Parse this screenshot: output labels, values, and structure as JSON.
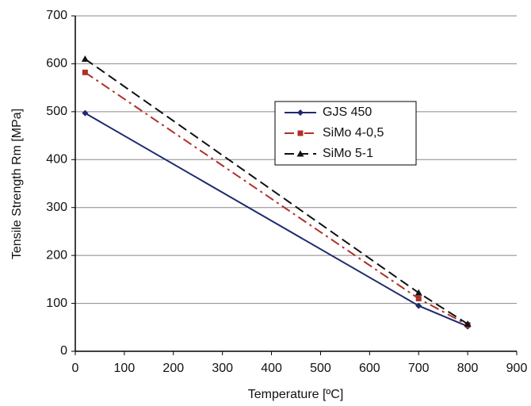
{
  "chart_data": {
    "type": "line",
    "x_label": "Temperature [ºC]",
    "y_label": "Tensile Strength  Rm [MPa]",
    "x": [
      20,
      700,
      800
    ],
    "series": [
      {
        "name": "GJS 450",
        "color": "#1f2a6e",
        "dash": "solid",
        "marker": "diamond",
        "values": [
          497,
          95,
          52
        ]
      },
      {
        "name": "SiMo 4-0,5",
        "color": "#b03028",
        "dash": "dashdot",
        "marker": "square",
        "values": [
          582,
          110,
          55
        ]
      },
      {
        "name": "SiMo 5-1",
        "color": "#111111",
        "dash": "dashed",
        "marker": "triangle",
        "values": [
          610,
          122,
          57
        ]
      }
    ],
    "xlim": [
      0,
      900
    ],
    "xticks": [
      0,
      100,
      200,
      300,
      400,
      500,
      600,
      700,
      800,
      900
    ],
    "ylim": [
      0,
      700
    ],
    "yticks": [
      0,
      100,
      200,
      300,
      400,
      500,
      600,
      700
    ],
    "grid": true,
    "legend": "upper right"
  }
}
